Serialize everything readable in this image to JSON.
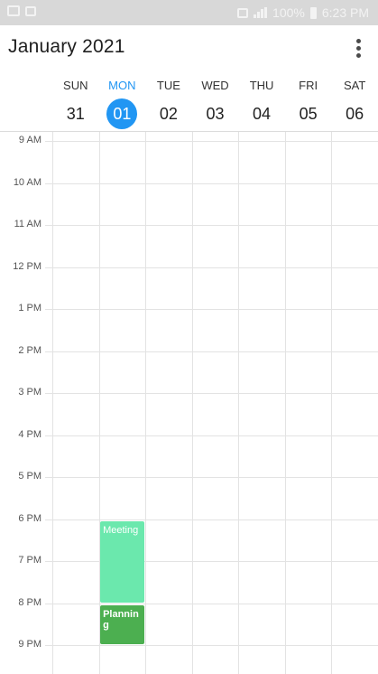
{
  "status_bar": {
    "battery": "100%",
    "time": "6:23 PM"
  },
  "header": {
    "title": "January 2021",
    "menu_icon": "more-vert-icon"
  },
  "days": [
    {
      "name": "SUN",
      "date": "31",
      "today": false
    },
    {
      "name": "MON",
      "date": "01",
      "today": true
    },
    {
      "name": "TUE",
      "date": "02",
      "today": false
    },
    {
      "name": "WED",
      "date": "03",
      "today": false
    },
    {
      "name": "THU",
      "date": "04",
      "today": false
    },
    {
      "name": "FRI",
      "date": "05",
      "today": false
    },
    {
      "name": "SAT",
      "date": "06",
      "today": false
    }
  ],
  "hours": [
    "9 AM",
    "10 AM",
    "11 AM",
    "12 PM",
    "1 PM",
    "2 PM",
    "3 PM",
    "4 PM",
    "5 PM",
    "6 PM",
    "7 PM",
    "8 PM",
    "9 PM"
  ],
  "events": [
    {
      "title": "Meeting",
      "day": "MON",
      "start": "6 PM",
      "end": "8 PM",
      "color": "#6be8ad"
    },
    {
      "title": "Planning",
      "day": "MON",
      "start": "8 PM",
      "end": "9 PM",
      "color": "#4caf50"
    }
  ],
  "colors": {
    "accent": "#2196f3",
    "meeting": "#6be8ad",
    "planning": "#4caf50"
  }
}
